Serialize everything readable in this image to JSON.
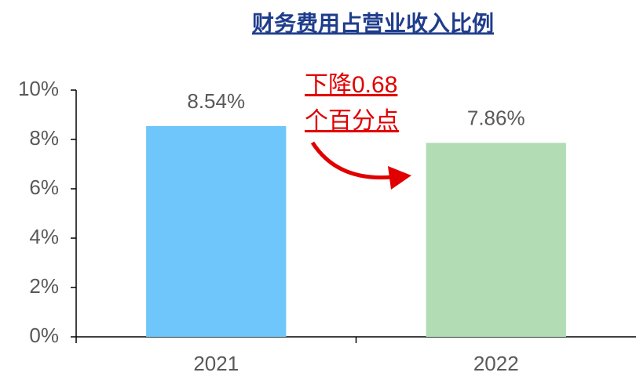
{
  "chart_data": {
    "type": "bar",
    "title": "财务费用占营业收入比例",
    "categories": [
      "2021",
      "2022"
    ],
    "values": [
      8.54,
      7.86
    ],
    "value_labels": [
      "8.54%",
      "7.86%"
    ],
    "colors": [
      "#6ec6fa",
      "#b1dcb4"
    ],
    "ylim": [
      0,
      10
    ],
    "yticks": [
      {
        "value": 0,
        "label": "0%"
      },
      {
        "value": 2,
        "label": "2%"
      },
      {
        "value": 4,
        "label": "4%"
      },
      {
        "value": 6,
        "label": "6%"
      },
      {
        "value": 8,
        "label": "8%"
      },
      {
        "value": 10,
        "label": "10%"
      }
    ],
    "annotations": [
      "下降0.68",
      "个百分点"
    ],
    "grid": false
  }
}
